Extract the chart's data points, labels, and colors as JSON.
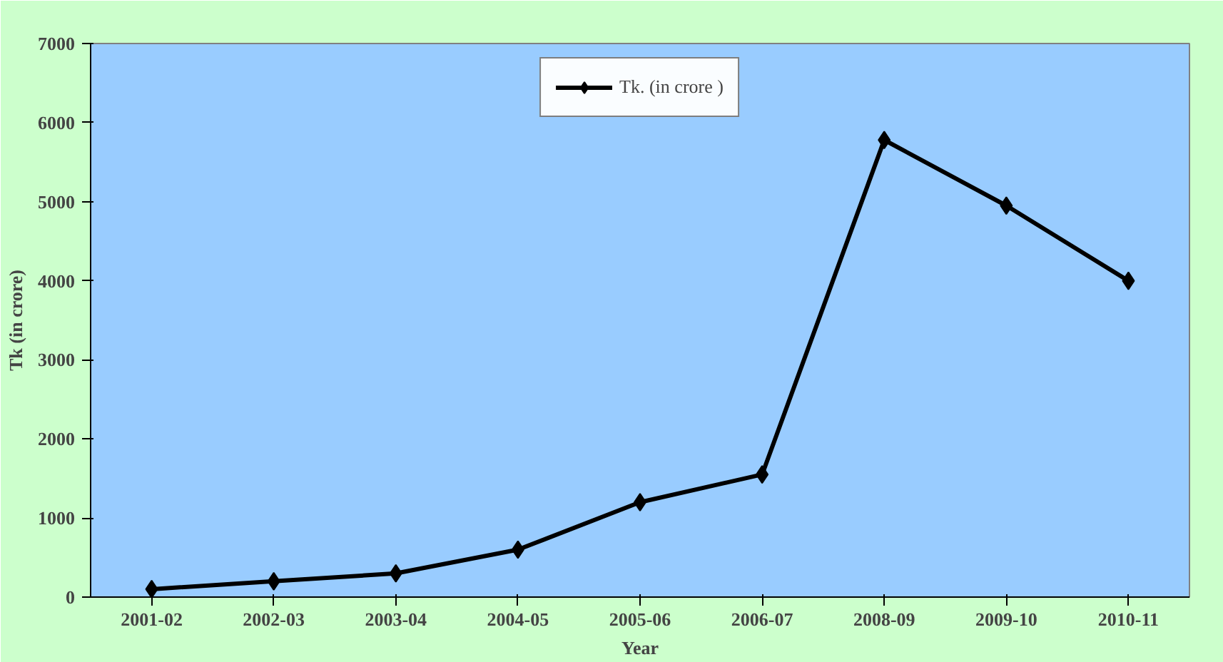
{
  "chart_data": {
    "type": "line",
    "xlabel": "Year",
    "ylabel": "Tk (in crore)",
    "categories": [
      "2001-02",
      "2002-03",
      "2003-04",
      "2004-05",
      "2005-06",
      "2006-07",
      "2008-09",
      "2009-10",
      "2010-11"
    ],
    "series": [
      {
        "name": "Tk. (in crore )",
        "color": "#000000",
        "values": [
          100,
          200,
          300,
          600,
          1200,
          1550,
          5780,
          4950,
          4000
        ]
      }
    ],
    "ylim": [
      0,
      7000
    ],
    "yticks": [
      0,
      1000,
      2000,
      3000,
      4000,
      5000,
      6000,
      7000
    ],
    "grid": false,
    "legend": "top",
    "marker": "diamond",
    "line_style": "solid"
  }
}
